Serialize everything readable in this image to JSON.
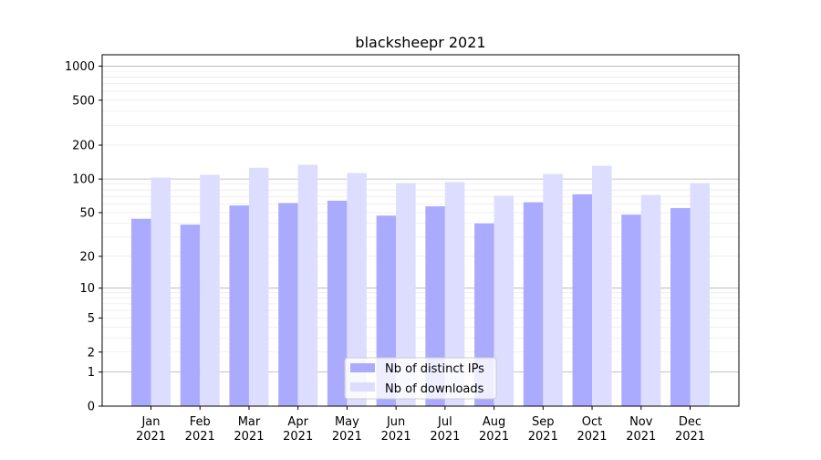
{
  "chart_data": {
    "type": "bar",
    "title": "blacksheepr 2021",
    "xlabel": "",
    "ylabel": "",
    "yscale": "log10(1+y)",
    "ylim": [
      0,
      1260
    ],
    "yticks": [
      0,
      1,
      2,
      5,
      10,
      20,
      50,
      100,
      200,
      500,
      1000
    ],
    "grid": true,
    "legend_position": "bottom-center",
    "categories": [
      [
        "Jan",
        "2021"
      ],
      [
        "Feb",
        "2021"
      ],
      [
        "Mar",
        "2021"
      ],
      [
        "Apr",
        "2021"
      ],
      [
        "May",
        "2021"
      ],
      [
        "Jun",
        "2021"
      ],
      [
        "Jul",
        "2021"
      ],
      [
        "Aug",
        "2021"
      ],
      [
        "Sep",
        "2021"
      ],
      [
        "Oct",
        "2021"
      ],
      [
        "Nov",
        "2021"
      ],
      [
        "Dec",
        "2021"
      ]
    ],
    "series": [
      {
        "name": "Nb of distinct IPs",
        "color": "#aaaaff",
        "values": [
          44,
          39,
          58,
          61,
          64,
          47,
          57,
          40,
          62,
          73,
          48,
          55
        ]
      },
      {
        "name": "Nb of downloads",
        "color": "#ddddff",
        "values": [
          103,
          109,
          126,
          134,
          113,
          92,
          94,
          71,
          111,
          131,
          72,
          92
        ]
      }
    ]
  }
}
